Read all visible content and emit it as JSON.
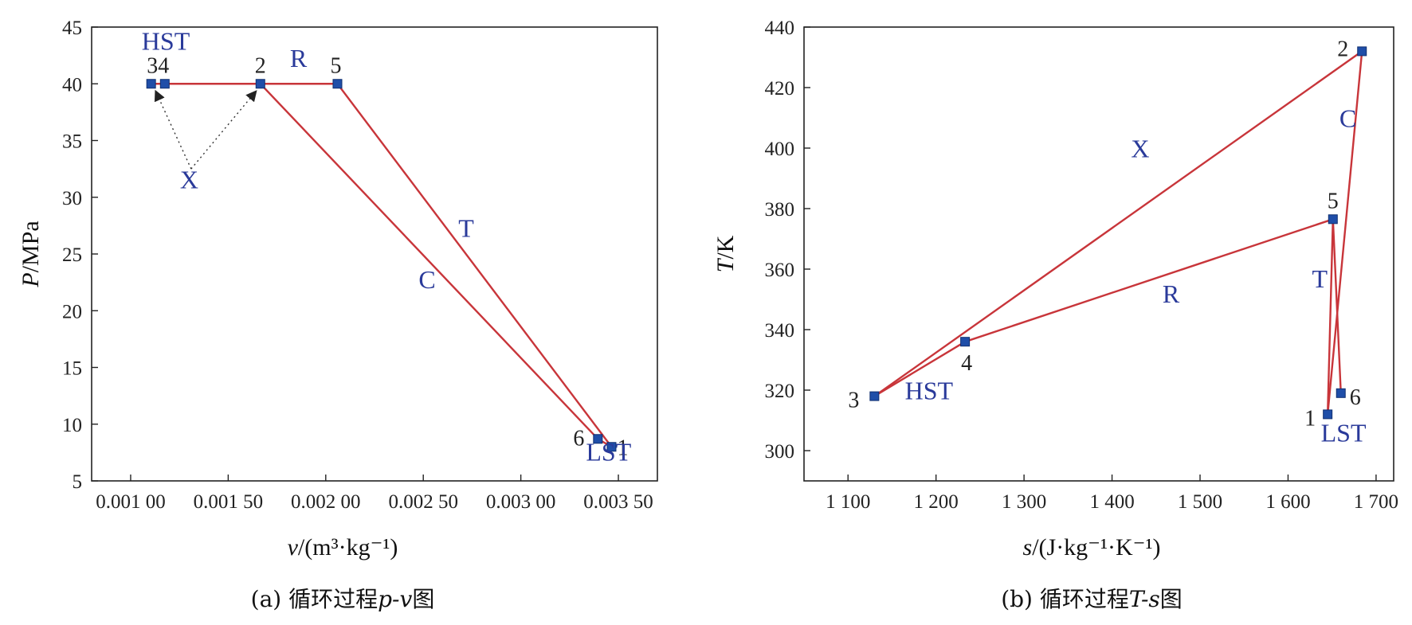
{
  "chart_data": [
    {
      "id": "pv",
      "type": "line",
      "caption": {
        "prefix": "(a) 循环过程",
        "var": "p-v",
        "suffix": "图"
      },
      "xlabel": {
        "var": "v",
        "unit": "/(m³·kg⁻¹)"
      },
      "ylabel": {
        "var": "P",
        "unit": "/MPa"
      },
      "xlim": [
        0.0008,
        0.0037
      ],
      "ylim": [
        5,
        45
      ],
      "xticks": [
        {
          "value": 0.001,
          "label": "0.001 00"
        },
        {
          "value": 0.0015,
          "label": "0.001 50"
        },
        {
          "value": 0.002,
          "label": "0.002 00"
        },
        {
          "value": 0.0025,
          "label": "0.002 50"
        },
        {
          "value": 0.003,
          "label": "0.003 00"
        },
        {
          "value": 0.0035,
          "label": "0.003 50"
        }
      ],
      "yticks": [
        {
          "value": 5,
          "label": "5"
        },
        {
          "value": 10,
          "label": "10"
        },
        {
          "value": 15,
          "label": "15"
        },
        {
          "value": 20,
          "label": "20"
        },
        {
          "value": 25,
          "label": "25"
        },
        {
          "value": 30,
          "label": "30"
        },
        {
          "value": 35,
          "label": "35"
        },
        {
          "value": 40,
          "label": "40"
        },
        {
          "value": 45,
          "label": "45"
        }
      ],
      "points": [
        {
          "label": "1",
          "x": 0.003465,
          "y": 8.0
        },
        {
          "label": "2",
          "x": 0.001665,
          "y": 40.0
        },
        {
          "label": "3",
          "x": 0.001105,
          "y": 40.0
        },
        {
          "label": "4",
          "x": 0.001175,
          "y": 40.0
        },
        {
          "label": "5",
          "x": 0.00206,
          "y": 40.0
        },
        {
          "label": "6",
          "x": 0.003395,
          "y": 8.7
        }
      ],
      "point_label_text": "34",
      "segments": [
        {
          "from": "3",
          "to": "5",
          "style": "solid"
        },
        {
          "from": "5",
          "to": "1",
          "style": "solid"
        },
        {
          "from": "2",
          "to": "6",
          "style": "solid"
        },
        {
          "from": "6",
          "to": "1",
          "style": "solid"
        }
      ],
      "dotted_path": [
        {
          "x": 0.00131,
          "y": 32.5
        }
      ],
      "process_labels": [
        {
          "text": "HST",
          "x": 0.00118,
          "y": 43.0
        },
        {
          "text": "R",
          "x": 0.00186,
          "y": 41.5
        },
        {
          "text": "X",
          "x": 0.0013,
          "y": 30.8
        },
        {
          "text": "T",
          "x": 0.00272,
          "y": 26.5
        },
        {
          "text": "C",
          "x": 0.00252,
          "y": 22.0
        },
        {
          "text": "LST",
          "x": 0.00345,
          "y": 6.8
        }
      ]
    },
    {
      "id": "ts",
      "type": "line",
      "caption": {
        "prefix": "(b) 循环过程",
        "var": "T-s",
        "suffix": "图"
      },
      "xlabel": {
        "var": "s",
        "unit": "/(J·kg⁻¹·K⁻¹)"
      },
      "ylabel": {
        "var": "T",
        "unit": "/K"
      },
      "xlim": [
        1050,
        1720
      ],
      "ylim": [
        290,
        440
      ],
      "xticks": [
        {
          "value": 1100,
          "label": "1 100"
        },
        {
          "value": 1200,
          "label": "1 200"
        },
        {
          "value": 1300,
          "label": "1 300"
        },
        {
          "value": 1400,
          "label": "1 400"
        },
        {
          "value": 1500,
          "label": "1 500"
        },
        {
          "value": 1600,
          "label": "1 600"
        },
        {
          "value": 1700,
          "label": "1 700"
        }
      ],
      "yticks": [
        {
          "value": 300,
          "label": "300"
        },
        {
          "value": 320,
          "label": "320"
        },
        {
          "value": 340,
          "label": "340"
        },
        {
          "value": 360,
          "label": "360"
        },
        {
          "value": 380,
          "label": "380"
        },
        {
          "value": 400,
          "label": "400"
        },
        {
          "value": 420,
          "label": "420"
        },
        {
          "value": 440,
          "label": "440"
        }
      ],
      "points": [
        {
          "label": "1",
          "x": 1645,
          "y": 312
        },
        {
          "label": "2",
          "x": 1684,
          "y": 432
        },
        {
          "label": "3",
          "x": 1130,
          "y": 318
        },
        {
          "label": "4",
          "x": 1233,
          "y": 336
        },
        {
          "label": "5",
          "x": 1651,
          "y": 376.5
        },
        {
          "label": "6",
          "x": 1660,
          "y": 319
        }
      ],
      "segments": [
        {
          "from": "3",
          "to": "2",
          "style": "solid"
        },
        {
          "from": "3",
          "to": "4",
          "style": "solid"
        },
        {
          "from": "4",
          "to": "5",
          "style": "solid"
        },
        {
          "from": "5",
          "to": "1",
          "style": "solid"
        },
        {
          "from": "1",
          "to": "2",
          "style": "solid"
        },
        {
          "from": "5",
          "to": "6",
          "style": "solid"
        }
      ],
      "process_labels": [
        {
          "text": "X",
          "x": 1432,
          "y": 397
        },
        {
          "text": "R",
          "x": 1467,
          "y": 349
        },
        {
          "text": "C",
          "x": 1668,
          "y": 407
        },
        {
          "text": "T",
          "x": 1636,
          "y": 354
        },
        {
          "text": "HST",
          "x": 1192,
          "y": 317
        },
        {
          "text": "LST",
          "x": 1663,
          "y": 303
        }
      ]
    }
  ]
}
